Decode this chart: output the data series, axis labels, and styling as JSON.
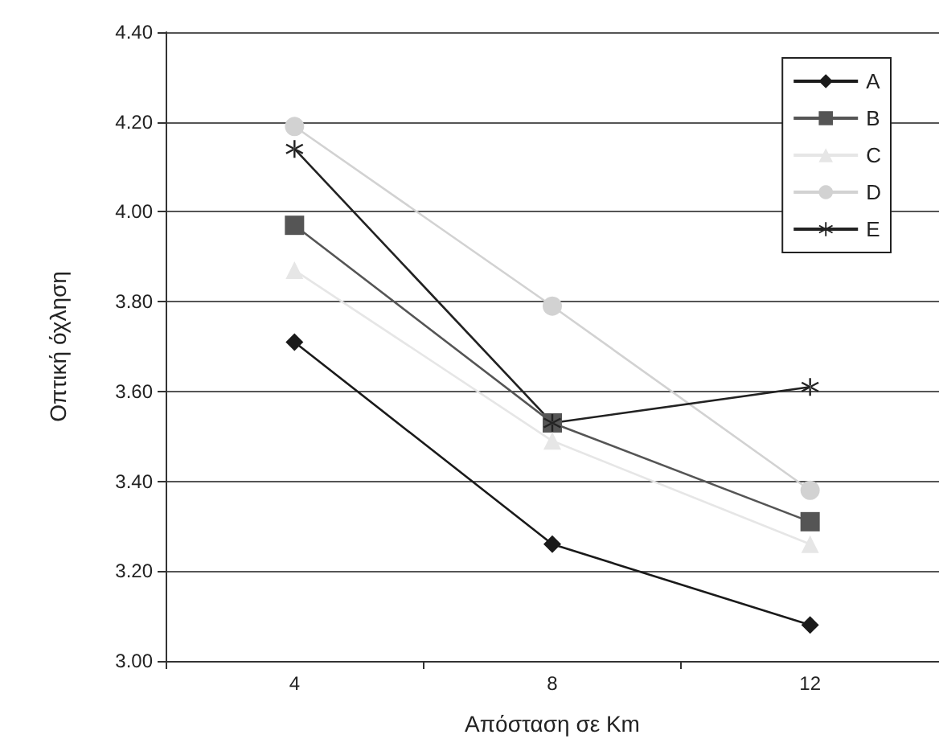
{
  "chart_data": {
    "type": "line",
    "xlabel": "Απόσταση σε Km",
    "ylabel": "Οπτική όχληση",
    "categories": [
      "4",
      "8",
      "12"
    ],
    "series": [
      {
        "name": "A",
        "color": "#1a1a1a",
        "marker": "diamond",
        "values": [
          3.71,
          3.26,
          3.08
        ]
      },
      {
        "name": "B",
        "color": "#555555",
        "marker": "square",
        "values": [
          3.97,
          3.53,
          3.31
        ]
      },
      {
        "name": "C",
        "color": "#e6e6e6",
        "marker": "triangle",
        "values": [
          3.87,
          3.49,
          3.26
        ]
      },
      {
        "name": "D",
        "color": "#d2d2d2",
        "marker": "circle",
        "values": [
          4.19,
          3.79,
          3.38
        ]
      },
      {
        "name": "E",
        "color": "#222222",
        "marker": "cross",
        "values": [
          4.14,
          3.53,
          3.61
        ]
      }
    ],
    "ylim": [
      3.0,
      4.4
    ],
    "yticks": [
      {
        "value": 3.0,
        "label": "3.00"
      },
      {
        "value": 3.2,
        "label": "3.20"
      },
      {
        "value": 3.4,
        "label": "3.40"
      },
      {
        "value": 3.6,
        "label": "3.60"
      },
      {
        "value": 3.8,
        "label": "3.80"
      },
      {
        "value": 4.0,
        "label": "4.00"
      },
      {
        "value": 4.2,
        "label": "4.20"
      },
      {
        "value": 4.4,
        "label": "4.40"
      }
    ],
    "grid": "y",
    "legend": "top right",
    "line_style": "solid"
  }
}
